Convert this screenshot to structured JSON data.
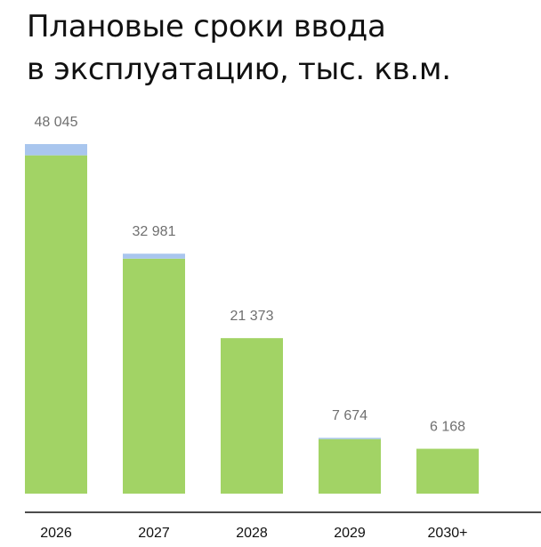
{
  "chart_data": {
    "type": "bar",
    "title_lines": [
      "Плановые сроки ввода",
      "в эксплуатацию, тыс. кв.м."
    ],
    "categories": [
      "2026",
      "2027",
      "2028",
      "2029",
      "2030+"
    ],
    "series": [
      {
        "values": [
          46500,
          32300,
          21373,
          7500,
          6168
        ],
        "color": "#a2d365"
      },
      {
        "values": [
          1545,
          681,
          0,
          174,
          0
        ],
        "color": "#a9c6ee"
      }
    ],
    "data_labels": [
      "48 045",
      "32 981",
      "21 373",
      "7 674",
      "6 168"
    ],
    "stacked": true,
    "xlabel": "",
    "ylabel": "",
    "ylim": [
      0,
      48045
    ],
    "grid": false,
    "baseline_color": "#111111"
  }
}
